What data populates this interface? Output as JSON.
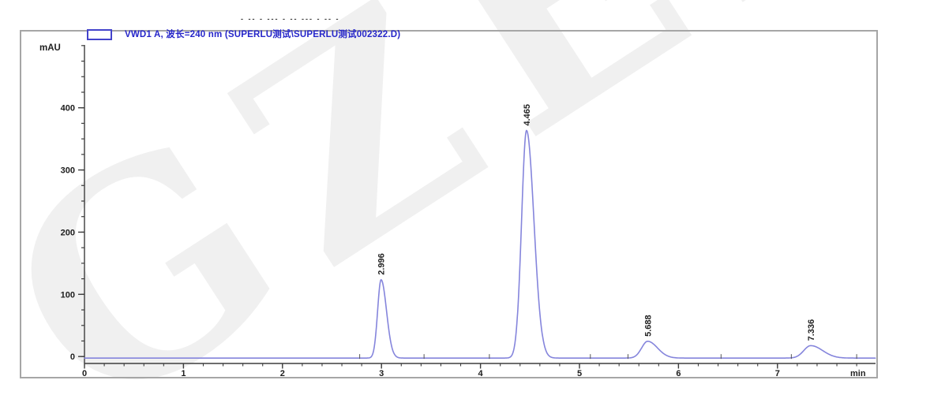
{
  "watermark": {
    "text": "GZELN",
    "color": "#f0f0f0"
  },
  "clipped_header_fragment": "- -- - --- - -- --- - -- -",
  "legend": {
    "label": "VWD1 A, 波长=240 nm (SUPERLU测试\\SUPERLU测试002322.D)",
    "text_color": "#2626c9",
    "swatch_border_color": "#4343cb"
  },
  "chart_data": {
    "type": "line",
    "title": "VWD1 A, 波长=240 nm (SUPERLU测试\\SUPERLU测试002322.D)",
    "xlabel": "min",
    "ylabel": "mAU",
    "xlim": [
      0,
      8
    ],
    "ylim": [
      -10,
      510
    ],
    "x_major_ticks": [
      0,
      1,
      2,
      3,
      4,
      5,
      6,
      7
    ],
    "x_minor_step": 0.2,
    "x_minor_max": 7.9,
    "y_major_ticks": [
      0,
      100,
      200,
      300,
      400
    ],
    "y_minor_step": 25,
    "y_minor_max": 500,
    "grid": false,
    "legend_position": "top-left",
    "line_color": "#8585dc",
    "baseline_mau": -2.5,
    "peaks": [
      {
        "rt": 2.996,
        "label": "2.996",
        "height_mau": 126,
        "sigma_left": 0.035,
        "sigma_right": 0.055
      },
      {
        "rt": 4.465,
        "label": "4.465",
        "height_mau": 366,
        "sigma_left": 0.05,
        "sigma_right": 0.075
      },
      {
        "rt": 5.688,
        "label": "5.688",
        "height_mau": 27,
        "sigma_left": 0.06,
        "sigma_right": 0.1
      },
      {
        "rt": 7.336,
        "label": "7.336",
        "height_mau": 20,
        "sigma_left": 0.07,
        "sigma_right": 0.12
      }
    ],
    "integration_markers_min": [
      2.78,
      3.43,
      4.09,
      5.11,
      5.49,
      6.43,
      7.14,
      7.8
    ]
  }
}
